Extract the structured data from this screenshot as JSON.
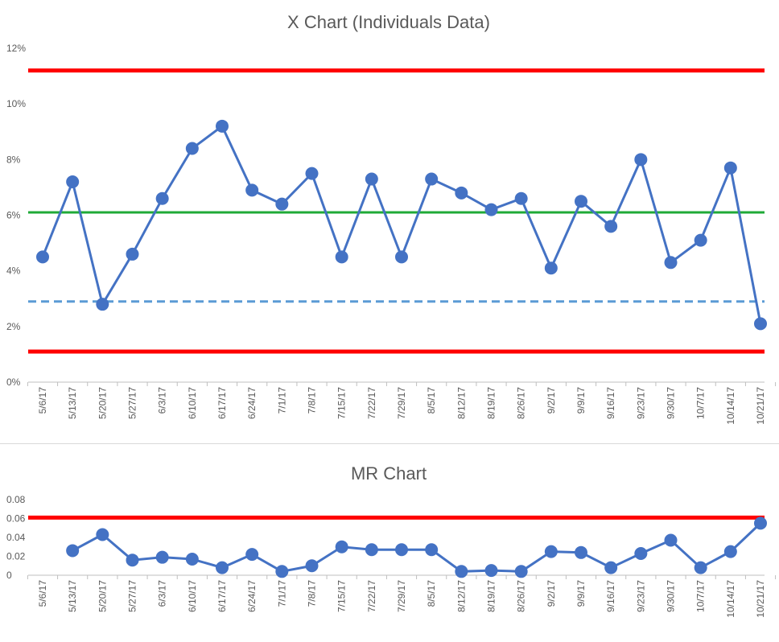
{
  "chart_data": [
    {
      "type": "line",
      "title": "X Chart (Individuals Data)",
      "xlabel": "",
      "ylabel": "",
      "categories": [
        "5/6/17",
        "5/13/17",
        "5/20/17",
        "5/27/17",
        "6/3/17",
        "6/10/17",
        "6/17/17",
        "6/24/17",
        "7/1/17",
        "7/8/17",
        "7/15/17",
        "7/22/17",
        "7/29/17",
        "8/5/17",
        "8/12/17",
        "8/19/17",
        "8/26/17",
        "9/2/17",
        "9/9/17",
        "9/16/17",
        "9/23/17",
        "9/30/17",
        "10/7/17",
        "10/14/17",
        "10/21/17"
      ],
      "series": [
        {
          "values": [
            0.045,
            0.072,
            0.028,
            0.046,
            0.066,
            0.084,
            0.092,
            0.069,
            0.064,
            0.075,
            0.045,
            0.073,
            0.045,
            0.073,
            0.068,
            0.062,
            0.066,
            0.041,
            0.065,
            0.056,
            0.08,
            0.043,
            0.051,
            0.077,
            0.021
          ],
          "color": "#4472c4",
          "style": "line-markers"
        }
      ],
      "reference_lines": [
        {
          "value": 0.112,
          "color": "#ff0000",
          "style": "solid"
        },
        {
          "value": 0.061,
          "color": "#1faa37",
          "style": "solid"
        },
        {
          "value": 0.029,
          "color": "#5b9bd5",
          "style": "dashed"
        },
        {
          "value": 0.011,
          "color": "#ff0000",
          "style": "solid"
        }
      ],
      "yticks": [
        0,
        0.02,
        0.04,
        0.06,
        0.08,
        0.1,
        0.12
      ],
      "ytick_labels": [
        "0%",
        "2%",
        "4%",
        "6%",
        "8%",
        "10%",
        "12%"
      ],
      "ylim": [
        0,
        0.12
      ],
      "grid": false,
      "legend": "none"
    },
    {
      "type": "line",
      "title": "MR Chart",
      "xlabel": "",
      "ylabel": "",
      "categories": [
        "5/6/17",
        "5/13/17",
        "5/20/17",
        "5/27/17",
        "6/3/17",
        "6/10/17",
        "6/17/17",
        "6/24/17",
        "7/1/17",
        "7/8/17",
        "7/15/17",
        "7/22/17",
        "7/29/17",
        "8/5/17",
        "8/12/17",
        "8/19/17",
        "8/26/17",
        "9/2/17",
        "9/9/17",
        "9/16/17",
        "9/23/17",
        "9/30/17",
        "10/7/17",
        "10/14/17",
        "10/21/17"
      ],
      "series": [
        {
          "values": [
            null,
            0.026,
            0.043,
            0.016,
            0.019,
            0.017,
            0.008,
            0.022,
            0.004,
            0.01,
            0.03,
            0.027,
            0.027,
            0.027,
            0.004,
            0.005,
            0.004,
            0.025,
            0.024,
            0.008,
            0.023,
            0.037,
            0.008,
            0.025,
            0.055
          ],
          "color": "#4472c4",
          "style": "line-markers"
        }
      ],
      "reference_lines": [
        {
          "value": 0.061,
          "color": "#ff0000",
          "style": "solid"
        }
      ],
      "yticks": [
        0,
        0.02,
        0.04,
        0.06,
        0.08
      ],
      "ytick_labels": [
        "0",
        "0.02",
        "0.04",
        "0.06",
        "0.08"
      ],
      "ylim": [
        0,
        0.08
      ],
      "grid": false,
      "legend": "none"
    }
  ]
}
